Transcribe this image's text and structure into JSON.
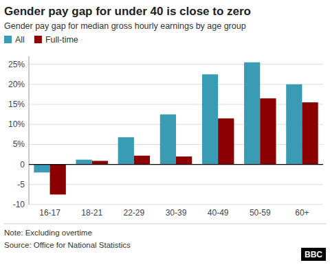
{
  "chart_data": {
    "type": "bar",
    "title": "Gender pay gap for under 40 is close to zero",
    "subtitle": "Gender pay gap for median gross hourly earnings by age group",
    "annotations": [
      "Note: Excluding overtime",
      "Source: Office for National Statistics",
      "BBC"
    ],
    "categories": [
      "16-17",
      "18-21",
      "22-29",
      "30-39",
      "40-49",
      "50-59",
      "60+"
    ],
    "series": [
      {
        "name": "All",
        "color": "#3a9bb5",
        "values": [
          -2.0,
          1.2,
          6.8,
          12.5,
          22.5,
          25.5,
          20.0
        ]
      },
      {
        "name": "Full-time",
        "color": "#8b0000",
        "values": [
          -7.5,
          0.9,
          2.2,
          2.0,
          11.5,
          16.5,
          15.5
        ]
      }
    ],
    "ylim": [
      -10,
      27
    ],
    "yticks": [
      -10,
      -5,
      0,
      {
        "value": 5,
        "label": "5%"
      },
      {
        "value": 10,
        "label": "10%"
      },
      {
        "value": 15,
        "label": "15%"
      },
      {
        "value": 20,
        "label": "20%"
      },
      {
        "value": 25,
        "label": "25%"
      }
    ],
    "grid": true,
    "legend": "top-left"
  }
}
